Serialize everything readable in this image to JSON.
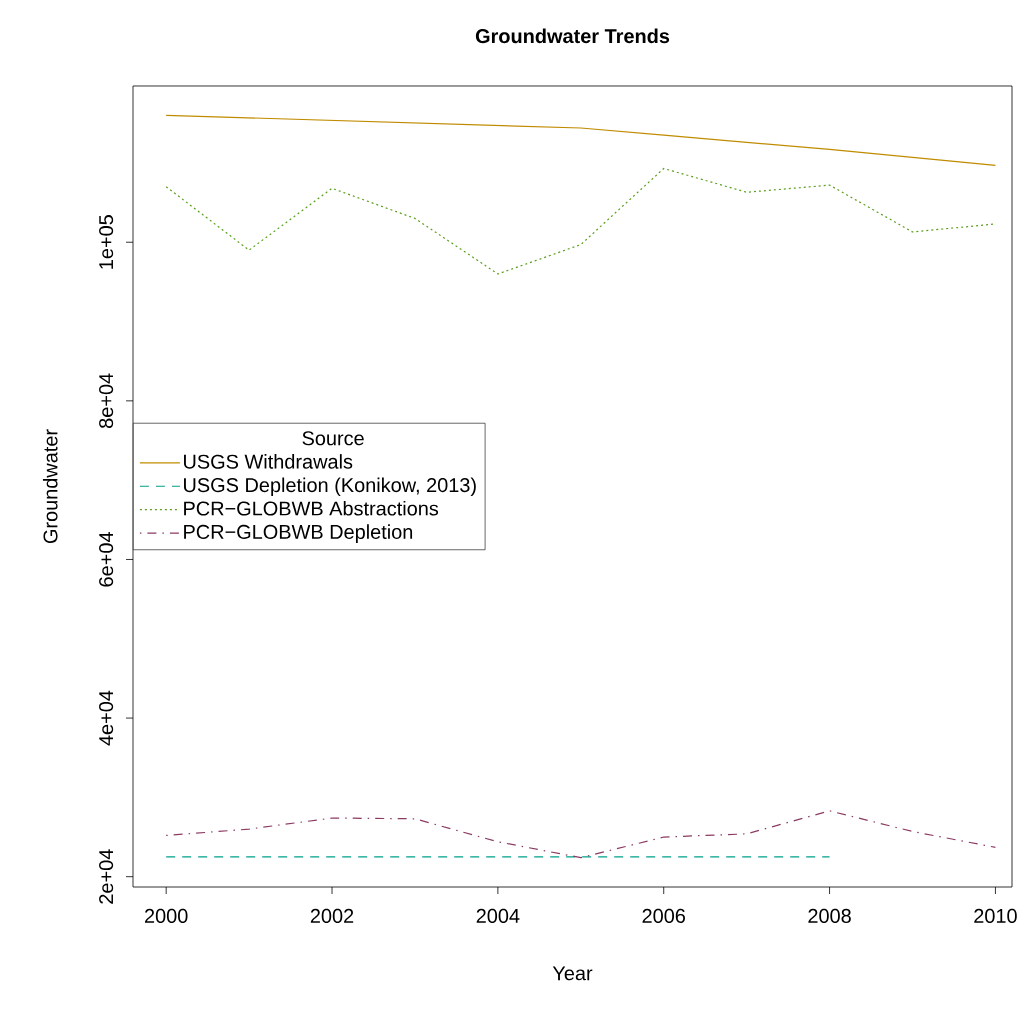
{
  "chart_data": {
    "type": "line",
    "title": "Groundwater Trends",
    "xlabel": "Year",
    "ylabel": "Groundwater",
    "legend_title": "Source",
    "legend": "left",
    "grid": false,
    "marker": "none",
    "xlim": [
      1999.6,
      2010.2
    ],
    "xticks": [
      2000,
      2002,
      2004,
      2006,
      2008,
      2010
    ],
    "ylim": [
      18700,
      119700
    ],
    "yticks": [
      {
        "value": 20000,
        "label": "2e+04"
      },
      {
        "value": 40000,
        "label": "4e+04"
      },
      {
        "value": 60000,
        "label": "6e+04"
      },
      {
        "value": 80000,
        "label": "8e+04"
      },
      {
        "value": 100000,
        "label": "1e+05"
      }
    ],
    "series": [
      {
        "name": "USGS Withdrawals",
        "color": "#c08b00",
        "line_style": "solid",
        "x": [
          2000,
          2005,
          2006,
          2008,
          2010
        ],
        "values": [
          116000,
          114400,
          113500,
          111700,
          109700
        ]
      },
      {
        "name": "USGS Depletion (Konikow, 2013)",
        "color": "#00a08a",
        "line_style": "dashed",
        "x": [
          2000,
          2008
        ],
        "values": [
          22500,
          22500
        ]
      },
      {
        "name": "PCR−GLOBWB Abstractions",
        "color": "#5a9e1c",
        "line_style": "dotted",
        "x": [
          2000,
          2001,
          2002,
          2003,
          2004,
          2005,
          2006,
          2007,
          2008,
          2009,
          2010
        ],
        "values": [
          107000,
          99000,
          106800,
          103000,
          96000,
          99700,
          109300,
          106300,
          107200,
          101300,
          102300
        ]
      },
      {
        "name": "PCR−GLOBWB Depletion",
        "color": "#8b3a62",
        "line_style": "dashdot",
        "x": [
          2000,
          2001,
          2002,
          2003,
          2004,
          2005,
          2006,
          2007,
          2008,
          2009,
          2010
        ],
        "values": [
          25200,
          26000,
          27400,
          27300,
          24400,
          22400,
          25000,
          25400,
          28300,
          25700,
          23700
        ]
      }
    ]
  }
}
